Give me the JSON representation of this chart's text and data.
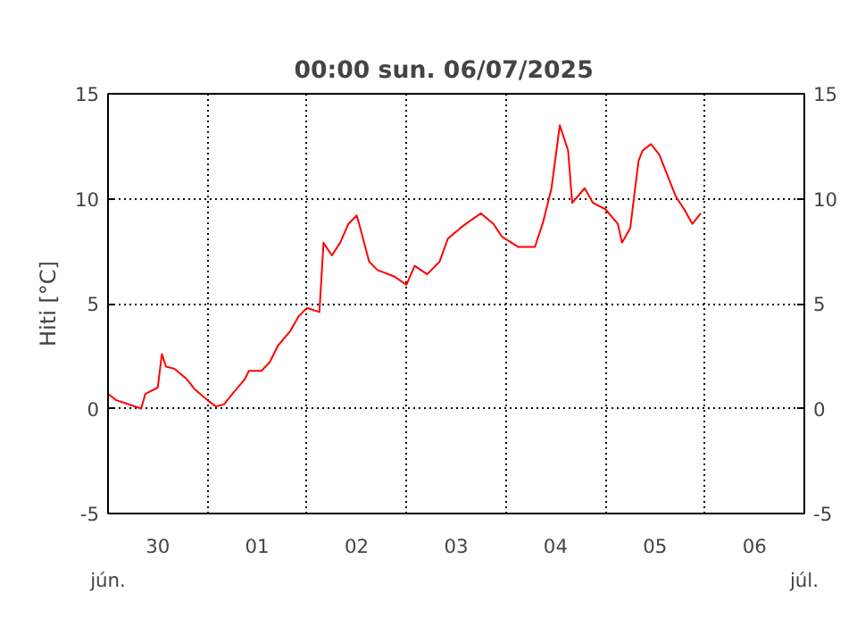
{
  "chart_data": {
    "type": "line",
    "title": "00:00   sun.  06/07/2025",
    "ylabel": "Hiti [°C]",
    "x": [
      "2025-06-30T00:00",
      "2025-06-30T02:00",
      "2025-06-30T05:00",
      "2025-06-30T08:00",
      "2025-06-30T09:00",
      "2025-06-30T12:00",
      "2025-06-30T13:00",
      "2025-06-30T14:00",
      "2025-06-30T16:00",
      "2025-06-30T19:00",
      "2025-06-30T21:00",
      "2025-07-01T00:00",
      "2025-07-01T02:00",
      "2025-07-01T04:00",
      "2025-07-01T06:00",
      "2025-07-01T09:00",
      "2025-07-01T10:00",
      "2025-07-01T13:00",
      "2025-07-01T15:00",
      "2025-07-01T17:00",
      "2025-07-01T20:00",
      "2025-07-01T22:00",
      "2025-07-02T00:00",
      "2025-07-02T03:00",
      "2025-07-02T04:00",
      "2025-07-02T06:00",
      "2025-07-02T08:00",
      "2025-07-02T10:00",
      "2025-07-02T12:00",
      "2025-07-02T13:00",
      "2025-07-02T15:00",
      "2025-07-02T17:00",
      "2025-07-02T21:00",
      "2025-07-03T00:00",
      "2025-07-03T02:00",
      "2025-07-03T05:00",
      "2025-07-03T08:00",
      "2025-07-03T10:00",
      "2025-07-03T13:00",
      "2025-07-03T15:00",
      "2025-07-03T18:00",
      "2025-07-03T21:00",
      "2025-07-03T23:00",
      "2025-07-04T03:00",
      "2025-07-04T07:00",
      "2025-07-04T09:00",
      "2025-07-04T11:00",
      "2025-07-04T13:00",
      "2025-07-04T15:00",
      "2025-07-04T16:00",
      "2025-07-04T19:00",
      "2025-07-04T21:00",
      "2025-07-05T00:00",
      "2025-07-05T03:00",
      "2025-07-05T04:00",
      "2025-07-05T06:00",
      "2025-07-05T08:00",
      "2025-07-05T09:00",
      "2025-07-05T11:00",
      "2025-07-05T13:00",
      "2025-07-05T15:00",
      "2025-07-05T17:00",
      "2025-07-05T19:00",
      "2025-07-05T21:00",
      "2025-07-05T23:00"
    ],
    "series": [
      {
        "color": "#ff0000",
        "values": [
          0.7,
          0.4,
          0.2,
          0.0,
          0.7,
          1.0,
          2.6,
          2.0,
          1.9,
          1.4,
          0.9,
          0.4,
          0.1,
          0.2,
          0.7,
          1.4,
          1.8,
          1.8,
          2.2,
          3.0,
          3.7,
          4.4,
          4.8,
          4.6,
          7.9,
          7.3,
          7.9,
          8.8,
          9.2,
          8.5,
          7.0,
          6.6,
          6.3,
          5.9,
          6.8,
          6.4,
          7.0,
          8.1,
          8.6,
          8.9,
          9.3,
          8.8,
          8.2,
          7.7,
          7.7,
          8.9,
          10.5,
          13.5,
          12.3,
          9.8,
          10.5,
          9.8,
          9.5,
          8.8,
          7.9,
          8.6,
          11.8,
          12.3,
          12.6,
          12.1,
          11.1,
          10.1,
          9.5,
          8.8,
          9.3
        ]
      }
    ],
    "xlim": [
      "2025-06-30T00:00",
      "2025-07-07T00:00"
    ],
    "xticks": [
      {
        "value": "2025-07-01T00:00",
        "label": null
      },
      {
        "value": "2025-07-02T00:00",
        "label": null
      },
      {
        "value": "2025-07-03T00:00",
        "label": null
      },
      {
        "value": "2025-07-04T00:00",
        "label": null
      },
      {
        "value": "2025-07-05T00:00",
        "label": null
      },
      {
        "value": "2025-07-06T00:00",
        "label": null
      },
      {
        "value": "2025-06-30T12:00",
        "label": "30"
      },
      {
        "value": "2025-07-01T12:00",
        "label": "01"
      },
      {
        "value": "2025-07-02T12:00",
        "label": "02"
      },
      {
        "value": "2025-07-03T12:00",
        "label": "03"
      },
      {
        "value": "2025-07-04T12:00",
        "label": "04"
      },
      {
        "value": "2025-07-05T12:00",
        "label": "05"
      },
      {
        "value": "2025-07-06T12:00",
        "label": "06"
      }
    ],
    "ylim": [
      -5,
      15
    ],
    "yticks": [
      -5,
      0,
      5,
      10,
      15
    ],
    "y2lim": [
      -5,
      15
    ],
    "y2ticks": [
      -5,
      0,
      5,
      10,
      15
    ],
    "annotations": [
      "jún.",
      "júl."
    ],
    "grid": true,
    "line_style": "solid"
  }
}
